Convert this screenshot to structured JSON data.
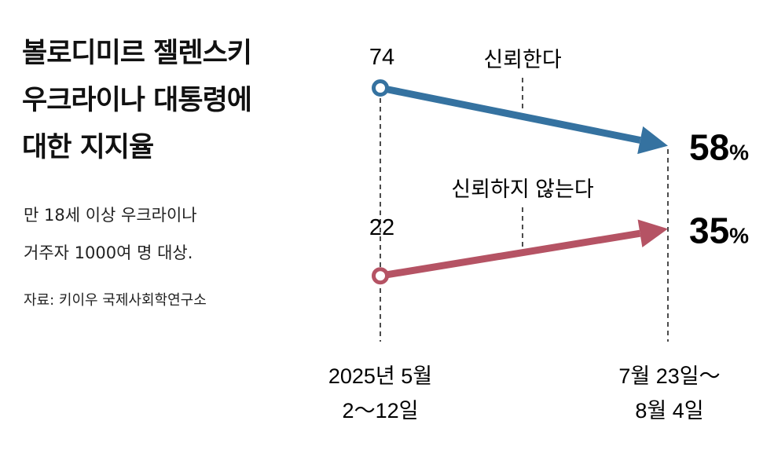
{
  "title_lines": [
    "볼로디미르 젤렌스키",
    "우크라이나 대통령에",
    "대한 지지율"
  ],
  "subtitle_lines": [
    "만 18세 이상 우크라이나",
    "거주자 1000여 명 대상."
  ],
  "source": "자료: 키이우 국제사회학연구소",
  "chart_data": {
    "type": "line",
    "title": "볼로디미르 젤렌스키 우크라이나 대통령에 대한 지지율",
    "categories": [
      [
        "2025년 5월",
        "2～12일"
      ],
      [
        "7월 23일～",
        "8월 4일"
      ]
    ],
    "unit": "%",
    "series": [
      {
        "name": "신뢰한다",
        "values": [
          74,
          58
        ],
        "color": "#3572a0",
        "start_label": "74",
        "end_label": "58",
        "end_unit": "%"
      },
      {
        "name": "신뢰하지 않는다",
        "values": [
          22,
          35
        ],
        "color": "#b55364",
        "start_label": "22",
        "end_label": "35",
        "end_unit": "%"
      }
    ]
  }
}
